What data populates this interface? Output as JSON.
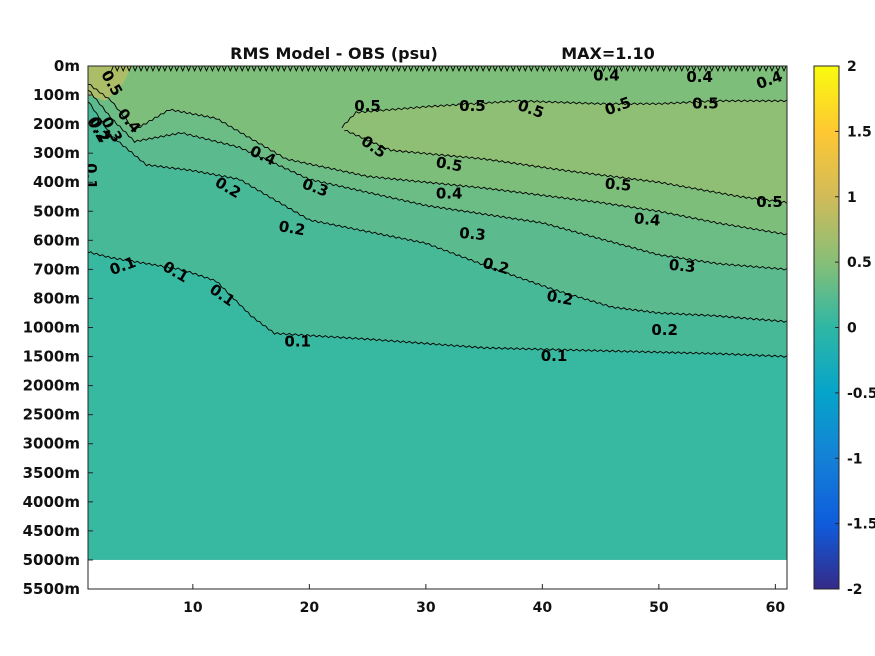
{
  "chart_data": {
    "type": "heatmap",
    "title": "RMS Model - OBS (psu)",
    "max_label": "MAX=1.10",
    "x": {
      "range": [
        1,
        61
      ],
      "ticks": [
        10,
        20,
        30,
        40,
        50,
        60
      ],
      "label": ""
    },
    "y": {
      "label": "",
      "reversed": true,
      "depth_levels": [
        "0m",
        "100m",
        "200m",
        "300m",
        "400m",
        "500m",
        "600m",
        "700m",
        "800m",
        "1000m",
        "1500m",
        "2000m",
        "2500m",
        "3000m",
        "3500m",
        "4000m",
        "4500m",
        "5000m",
        "5500m"
      ],
      "no_data_below": "5000m"
    },
    "colorbar": {
      "range": [
        -2,
        2
      ],
      "ticks": [
        2,
        1.5,
        1,
        0.5,
        0,
        -0.5,
        -1,
        -1.5,
        -2
      ],
      "tick_labels": [
        "2",
        "1.5",
        "1",
        "0.5",
        "0",
        "-0.5",
        "-1",
        "-1.5",
        "-2"
      ],
      "colormap": "parula",
      "stops": [
        "#352a87",
        "#0f5cdd",
        "#1481d6",
        "#06a4ca",
        "#2eb7a4",
        "#87bf77",
        "#d1bb59",
        "#fec832",
        "#f9fb0e"
      ]
    },
    "contour_levels": [
      0.1,
      0.2,
      0.3,
      0.4,
      0.5
    ],
    "contours": [
      {
        "level": 0.1,
        "points": [
          [
            1,
            6.4
          ],
          [
            3,
            6.6
          ],
          [
            6,
            6.8
          ],
          [
            9,
            7.0
          ],
          [
            12,
            7.4
          ],
          [
            14,
            8.2
          ],
          [
            15,
            8.6
          ],
          [
            17,
            9.2
          ],
          [
            25,
            9.4
          ],
          [
            35,
            9.7
          ],
          [
            45,
            9.8
          ],
          [
            55,
            9.9
          ],
          [
            61,
            10.0
          ]
        ]
      },
      {
        "level": 0.2,
        "points": [
          [
            1,
            1.2
          ],
          [
            3,
            2.4
          ],
          [
            6,
            3.4
          ],
          [
            10,
            3.6
          ],
          [
            14,
            3.9
          ],
          [
            20,
            5.3
          ],
          [
            30,
            6.1
          ],
          [
            36,
            7.0
          ],
          [
            41,
            7.7
          ],
          [
            46,
            8.3
          ],
          [
            50,
            8.5
          ],
          [
            55,
            8.6
          ],
          [
            61,
            8.8
          ]
        ]
      },
      {
        "level": 0.3,
        "points": [
          [
            1,
            0.8
          ],
          [
            3,
            1.8
          ],
          [
            5,
            2.6
          ],
          [
            9,
            2.3
          ],
          [
            14,
            2.8
          ],
          [
            20,
            3.9
          ],
          [
            30,
            4.8
          ],
          [
            40,
            5.4
          ],
          [
            50,
            6.5
          ],
          [
            55,
            6.8
          ],
          [
            61,
            7.0
          ]
        ]
      },
      {
        "level": 0.4,
        "points": [
          [
            1,
            0.6
          ],
          [
            3,
            1.2
          ],
          [
            5,
            2.2
          ],
          [
            8,
            1.5
          ],
          [
            12,
            1.8
          ],
          [
            18,
            3.2
          ],
          [
            25,
            3.8
          ],
          [
            35,
            4.2
          ],
          [
            45,
            4.7
          ],
          [
            50,
            5.0
          ],
          [
            55,
            5.4
          ],
          [
            61,
            5.8
          ]
        ]
      },
      {
        "level": 0.5,
        "points": [
          [
            23,
            2.2
          ],
          [
            27,
            2.9
          ],
          [
            35,
            3.2
          ],
          [
            42,
            3.6
          ],
          [
            50,
            4.0
          ],
          [
            57,
            4.5
          ],
          [
            61,
            4.7
          ]
        ]
      },
      {
        "level": 0.5,
        "points": [
          [
            22.8,
            2.1
          ],
          [
            24,
            1.6
          ],
          [
            30,
            1.4
          ],
          [
            38,
            1.2
          ],
          [
            45,
            1.3
          ],
          [
            50,
            1.3
          ],
          [
            55,
            1.2
          ],
          [
            61,
            1.2
          ]
        ]
      },
      {
        "level": 0.4,
        "points": [
          [
            3,
            0.05
          ],
          [
            15,
            0.05
          ],
          [
            30,
            0.05
          ],
          [
            45,
            0.05
          ],
          [
            61,
            0.05
          ]
        ]
      }
    ],
    "contour_labels": [
      {
        "text": "0.1",
        "x": 4,
        "y": 6.9,
        "rot": -20
      },
      {
        "text": "0.1",
        "x": 8.5,
        "y": 7.1,
        "rot": 30
      },
      {
        "text": "0.1",
        "x": 12.5,
        "y": 7.9,
        "rot": 35
      },
      {
        "text": "0.1",
        "x": 19,
        "y": 9.5,
        "rot": 0
      },
      {
        "text": "0.1",
        "x": 41,
        "y": 10.0,
        "rot": 0
      },
      {
        "text": "0.2",
        "x": 2,
        "y": 2.2,
        "rot": 60
      },
      {
        "text": "0.2",
        "x": 13,
        "y": 4.2,
        "rot": 30
      },
      {
        "text": "0.2",
        "x": 18.5,
        "y": 5.6,
        "rot": 10
      },
      {
        "text": "0.2",
        "x": 36,
        "y": 6.9,
        "rot": 15
      },
      {
        "text": "0.2",
        "x": 41.5,
        "y": 8.0,
        "rot": 10
      },
      {
        "text": "0.2",
        "x": 50.5,
        "y": 9.1,
        "rot": 0
      },
      {
        "text": "0.3",
        "x": 3,
        "y": 2.2,
        "rot": 60
      },
      {
        "text": "0.3",
        "x": 20.5,
        "y": 4.2,
        "rot": 20
      },
      {
        "text": "0.3",
        "x": 34,
        "y": 5.8,
        "rot": 5
      },
      {
        "text": "0.3",
        "x": 52,
        "y": 6.9,
        "rot": 5
      },
      {
        "text": "0.4",
        "x": 4.5,
        "y": 1.9,
        "rot": 50
      },
      {
        "text": "0.4",
        "x": 16,
        "y": 3.1,
        "rot": 25
      },
      {
        "text": "0.4",
        "x": 32,
        "y": 4.4,
        "rot": 0
      },
      {
        "text": "0.4",
        "x": 49,
        "y": 5.3,
        "rot": 5
      },
      {
        "text": "0.4",
        "x": 45.5,
        "y": 0.35,
        "rot": 0
      },
      {
        "text": "0.4",
        "x": 53.5,
        "y": 0.4,
        "rot": 0
      },
      {
        "text": "0.4",
        "x": 59.5,
        "y": 0.5,
        "rot": -20
      },
      {
        "text": "0.5",
        "x": 3,
        "y": 0.6,
        "rot": 60
      },
      {
        "text": "0.5",
        "x": 25,
        "y": 1.4,
        "rot": 0
      },
      {
        "text": "0.5",
        "x": 34,
        "y": 1.4,
        "rot": 0
      },
      {
        "text": "0.5",
        "x": 39,
        "y": 1.5,
        "rot": 20
      },
      {
        "text": "0.5",
        "x": 46.5,
        "y": 1.4,
        "rot": -20
      },
      {
        "text": "0.5",
        "x": 54,
        "y": 1.3,
        "rot": 0
      },
      {
        "text": "0.5",
        "x": 25.5,
        "y": 2.8,
        "rot": 35
      },
      {
        "text": "0.5",
        "x": 32,
        "y": 3.4,
        "rot": 10
      },
      {
        "text": "0.5",
        "x": 46.5,
        "y": 4.1,
        "rot": 5
      },
      {
        "text": "0.5",
        "x": 59.5,
        "y": 4.7,
        "rot": 0
      },
      {
        "text": "0.1",
        "x": 1.2,
        "y": 3.8,
        "rot": 90
      },
      {
        "text": "0.2",
        "x": 1.8,
        "y": 2.2,
        "rot": 60
      }
    ]
  }
}
